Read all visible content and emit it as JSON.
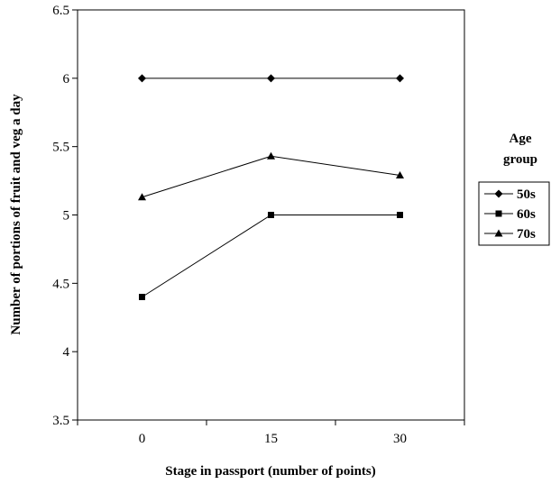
{
  "chart_data": {
    "type": "line",
    "title": "",
    "xlabel": "Stage in passport (number of points)",
    "ylabel": "Number of portions of fruit and veg a day",
    "categories": [
      "0",
      "15",
      "30"
    ],
    "ylim": [
      3.5,
      6.5
    ],
    "yticks": [
      "3.5",
      "4",
      "4.5",
      "5",
      "5.5",
      "6",
      "6.5"
    ],
    "grid": false,
    "legend": {
      "title_lines": [
        "Age",
        "group"
      ],
      "placement": "right"
    },
    "series": [
      {
        "name": "50s",
        "marker": "diamond",
        "values": [
          6.0,
          6.0,
          6.0
        ]
      },
      {
        "name": "60s",
        "marker": "square",
        "values": [
          4.4,
          5.0,
          5.0
        ]
      },
      {
        "name": "70s",
        "marker": "triangle",
        "values": [
          5.13,
          5.43,
          5.29
        ]
      }
    ]
  }
}
